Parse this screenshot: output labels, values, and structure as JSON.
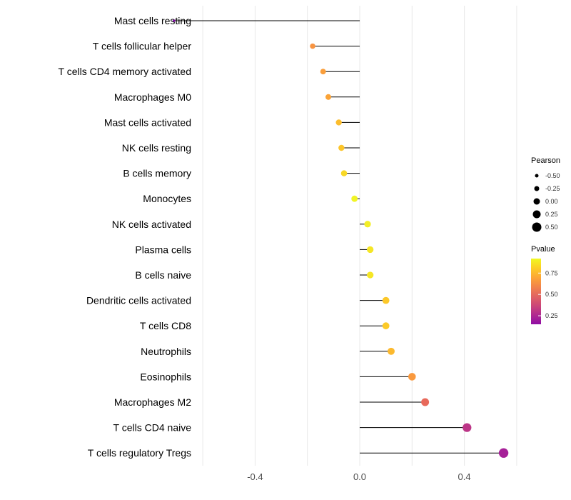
{
  "chart_data": {
    "type": "lollipop",
    "title": "",
    "xlabel": "",
    "ylabel": "",
    "x_tick_values": [
      -0.4,
      0.0,
      0.4
    ],
    "x_tick_labels": [
      "-0.4",
      "0.0",
      "0.4"
    ],
    "xlim": [
      -0.78,
      0.63
    ],
    "gridline_values": [
      -0.6,
      -0.4,
      -0.2,
      0.0,
      0.2,
      0.4,
      0.6
    ],
    "grid_on": true,
    "points": [
      {
        "name": "Mast cells resting",
        "pearson": -0.71,
        "pvalue": 0.04,
        "color": "#7E03A8"
      },
      {
        "name": "T cells follicular helper",
        "pearson": -0.18,
        "pvalue": 0.52,
        "color": "#F89441"
      },
      {
        "name": "T cells CD4 memory activated",
        "pearson": -0.14,
        "pvalue": 0.58,
        "color": "#FA9E3B"
      },
      {
        "name": "Macrophages M0",
        "pearson": -0.12,
        "pvalue": 0.6,
        "color": "#FBA337"
      },
      {
        "name": "Mast cells activated",
        "pearson": -0.08,
        "pvalue": 0.7,
        "color": "#FCBD2D"
      },
      {
        "name": "NK cells resting",
        "pearson": -0.07,
        "pvalue": 0.73,
        "color": "#FCC52A"
      },
      {
        "name": "B cells memory",
        "pearson": -0.06,
        "pvalue": 0.78,
        "color": "#F8D826"
      },
      {
        "name": "Monocytes",
        "pearson": -0.02,
        "pvalue": 0.9,
        "color": "#F1F426"
      },
      {
        "name": "NK cells activated",
        "pearson": 0.03,
        "pvalue": 0.87,
        "color": "#F3EE26"
      },
      {
        "name": "Plasma cells",
        "pearson": 0.04,
        "pvalue": 0.84,
        "color": "#F5E626"
      },
      {
        "name": "B cells naive",
        "pearson": 0.04,
        "pvalue": 0.84,
        "color": "#F5E626"
      },
      {
        "name": "Dendritic cells activated",
        "pearson": 0.1,
        "pvalue": 0.73,
        "color": "#FCC829"
      },
      {
        "name": "T cells CD8",
        "pearson": 0.1,
        "pvalue": 0.74,
        "color": "#FCCA28"
      },
      {
        "name": "Neutrophils",
        "pearson": 0.12,
        "pvalue": 0.68,
        "color": "#FCB92E"
      },
      {
        "name": "Eosinophils",
        "pearson": 0.2,
        "pvalue": 0.55,
        "color": "#F9993E"
      },
      {
        "name": "Macrophages M2",
        "pearson": 0.25,
        "pvalue": 0.42,
        "color": "#E8695B"
      },
      {
        "name": "T cells CD4 naive",
        "pearson": 0.41,
        "pvalue": 0.18,
        "color": "#BC3587"
      },
      {
        "name": "T cells regulatory Tregs",
        "pearson": 0.55,
        "pvalue": 0.1,
        "color": "#A62098"
      }
    ],
    "legend_size": {
      "title": "Pearson",
      "dot_color": "#000000",
      "entries": [
        {
          "label": "-0.50",
          "value": -0.5
        },
        {
          "label": "-0.25",
          "value": -0.25
        },
        {
          "label": "0.00",
          "value": 0.0
        },
        {
          "label": "0.25",
          "value": 0.25
        },
        {
          "label": "0.50",
          "value": 0.5
        }
      ]
    },
    "legend_color": {
      "title": "Pvalue",
      "gradient_top_to_bottom": [
        "#F0F921",
        "#FCCE25",
        "#FCA636",
        "#F2844B",
        "#E16462",
        "#CC4778",
        "#B12A90",
        "#8F0DA4"
      ],
      "domain_top": 0.92,
      "domain_bottom": 0.15,
      "tick_labels": [
        "0.75",
        "0.50",
        "0.25"
      ],
      "tick_values": [
        0.75,
        0.5,
        0.25
      ]
    },
    "legend_position": "right"
  },
  "colors": {
    "background": "#FFFFFF",
    "stem": "#000000",
    "grid": "#E8E8E8",
    "axis_text": "#4D4D4D",
    "label_text": "#000000"
  }
}
